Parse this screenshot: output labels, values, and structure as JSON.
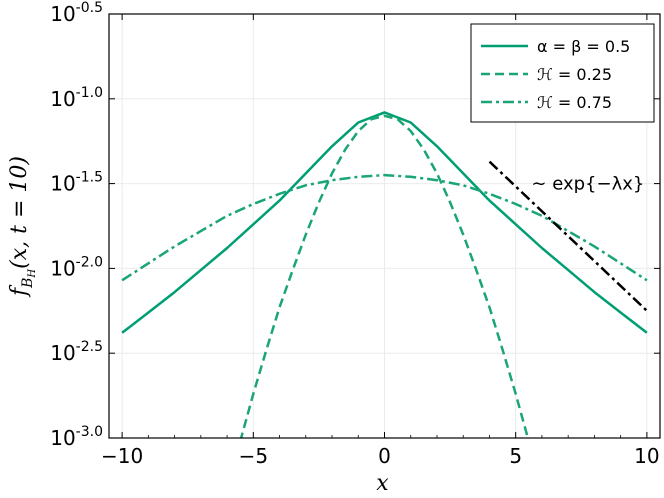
{
  "chart_data": {
    "type": "line",
    "title": "",
    "xlabel": "x",
    "ylabel": "f_{B_H}(x, t = 10)",
    "xlim": [
      -10.5,
      10.5
    ],
    "ylim": [
      -3.0,
      -0.5
    ],
    "y_scale": "log10",
    "grid": true,
    "legend_position": "top-right",
    "x_ticks": [
      -10,
      -5,
      0,
      5,
      10
    ],
    "x_tick_labels": [
      "−10",
      "−5",
      "0",
      "5",
      "10"
    ],
    "y_ticks": [
      -3.0,
      -2.5,
      -2.0,
      -1.5,
      -1.0,
      -0.5
    ],
    "y_tick_labels": [
      "-3.0",
      "-2.5",
      "-2.0",
      "-1.5",
      "-1.0",
      "-0.5"
    ],
    "series": [
      {
        "name": "α = β = 0.5",
        "style": "solid",
        "color": "#009e73",
        "x": [
          -10,
          -9,
          -8,
          -7,
          -6,
          -5,
          -4,
          -3,
          -2,
          -1,
          0,
          1,
          2,
          3,
          4,
          5,
          6,
          7,
          8,
          9,
          10
        ],
        "y": [
          -2.38,
          -2.26,
          -2.14,
          -2.01,
          -1.88,
          -1.74,
          -1.6,
          -1.44,
          -1.28,
          -1.14,
          -1.08,
          -1.14,
          -1.28,
          -1.44,
          -1.6,
          -1.74,
          -1.88,
          -2.01,
          -2.14,
          -2.26,
          -2.38
        ]
      },
      {
        "name": "ℋ = 0.25",
        "style": "dashed",
        "color": "#1aa575",
        "x": [
          -5.5,
          -5,
          -4.5,
          -4,
          -3.5,
          -3,
          -2.5,
          -2,
          -1.5,
          -1,
          -0.5,
          0,
          0.5,
          1,
          1.5,
          2,
          2.5,
          3,
          3.5,
          4,
          4.5,
          5,
          5.5
        ],
        "y": [
          -3.02,
          -2.74,
          -2.48,
          -2.23,
          -2.01,
          -1.8,
          -1.61,
          -1.44,
          -1.3,
          -1.19,
          -1.12,
          -1.1,
          -1.12,
          -1.19,
          -1.3,
          -1.44,
          -1.61,
          -1.8,
          -2.01,
          -2.23,
          -2.48,
          -2.74,
          -3.02
        ]
      },
      {
        "name": "ℋ = 0.75",
        "style": "dashdot",
        "color": "#1aa575",
        "x": [
          -10,
          -9,
          -8,
          -7,
          -6,
          -5,
          -4,
          -3,
          -2,
          -1,
          0,
          1,
          2,
          3,
          4,
          5,
          6,
          7,
          8,
          9,
          10
        ],
        "y": [
          -2.07,
          -1.97,
          -1.87,
          -1.78,
          -1.69,
          -1.62,
          -1.56,
          -1.51,
          -1.48,
          -1.46,
          -1.45,
          -1.46,
          -1.48,
          -1.51,
          -1.56,
          -1.62,
          -1.69,
          -1.78,
          -1.87,
          -1.97,
          -2.07
        ]
      },
      {
        "name": "",
        "style": "dashdot",
        "color": "#000000",
        "x": [
          4,
          10
        ],
        "y": [
          -1.37,
          -2.25
        ]
      }
    ],
    "annotations": [
      {
        "text": "∼ exp{−λx}",
        "x": 5.6,
        "y": -1.5
      }
    ]
  }
}
